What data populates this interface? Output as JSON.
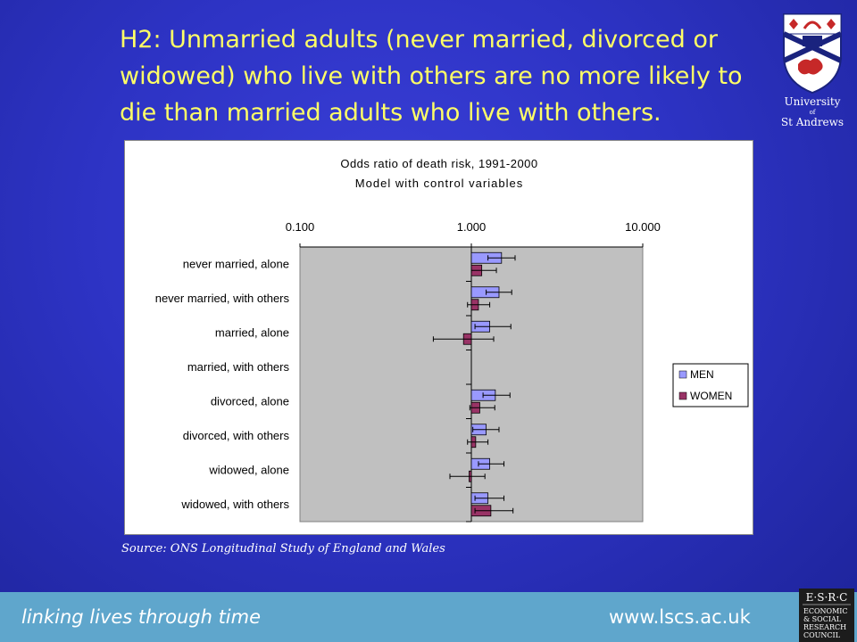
{
  "slide": {
    "title": "H2: Unmarried adults (never married, divorced or widowed) who live with others are no more likely to die than married adults who live with others.",
    "source": "Source: ONS Longitudinal Study of England and Wales"
  },
  "logo": {
    "line1": "University",
    "line2": "of",
    "line3": "St Andrews"
  },
  "footer": {
    "tagline": "linking lives through time",
    "url": "www.lscs.ac.uk"
  },
  "esrc": {
    "top": "E·S·R·C",
    "l1": "ECONOMIC",
    "l2": "& SOCIAL",
    "l3": "RESEARCH",
    "l4": "COUNCIL"
  },
  "colors": {
    "men": "#9999ff",
    "women": "#993366",
    "plot_bg": "#c0c0c0",
    "title": "#ffff66"
  },
  "chart_data": {
    "type": "bar",
    "orientation": "horizontal",
    "scale": "log",
    "title": "Odds ratio of death risk, 1991-2000",
    "subtitle": "Model with control variables",
    "xlim": [
      0.1,
      10
    ],
    "x_ticks": [
      "0.100",
      "1.000",
      "10.000"
    ],
    "x_tick_values": [
      0.1,
      1,
      10
    ],
    "grid": false,
    "legend_position": "right",
    "categories": [
      "never married, alone",
      "never married, with others",
      "married, alone",
      "married, with others",
      "divorced, alone",
      "divorced, with others",
      "widowed, alone",
      "widowed, with others"
    ],
    "series": [
      {
        "name": "MEN",
        "values": [
          1.5,
          1.45,
          1.28,
          1.0,
          1.38,
          1.22,
          1.28,
          1.25
        ],
        "lower": [
          1.25,
          1.22,
          1.05,
          1.0,
          1.17,
          1.02,
          1.1,
          1.05
        ],
        "upper": [
          1.8,
          1.72,
          1.7,
          1.0,
          1.68,
          1.45,
          1.55,
          1.55
        ]
      },
      {
        "name": "WOMEN",
        "values": [
          1.15,
          1.1,
          0.9,
          1.0,
          1.12,
          1.06,
          0.97,
          1.3
        ],
        "lower": [
          1.0,
          0.95,
          0.6,
          1.0,
          0.98,
          0.95,
          0.75,
          1.05
        ],
        "upper": [
          1.4,
          1.28,
          1.35,
          1.0,
          1.37,
          1.25,
          1.2,
          1.75
        ]
      }
    ]
  }
}
